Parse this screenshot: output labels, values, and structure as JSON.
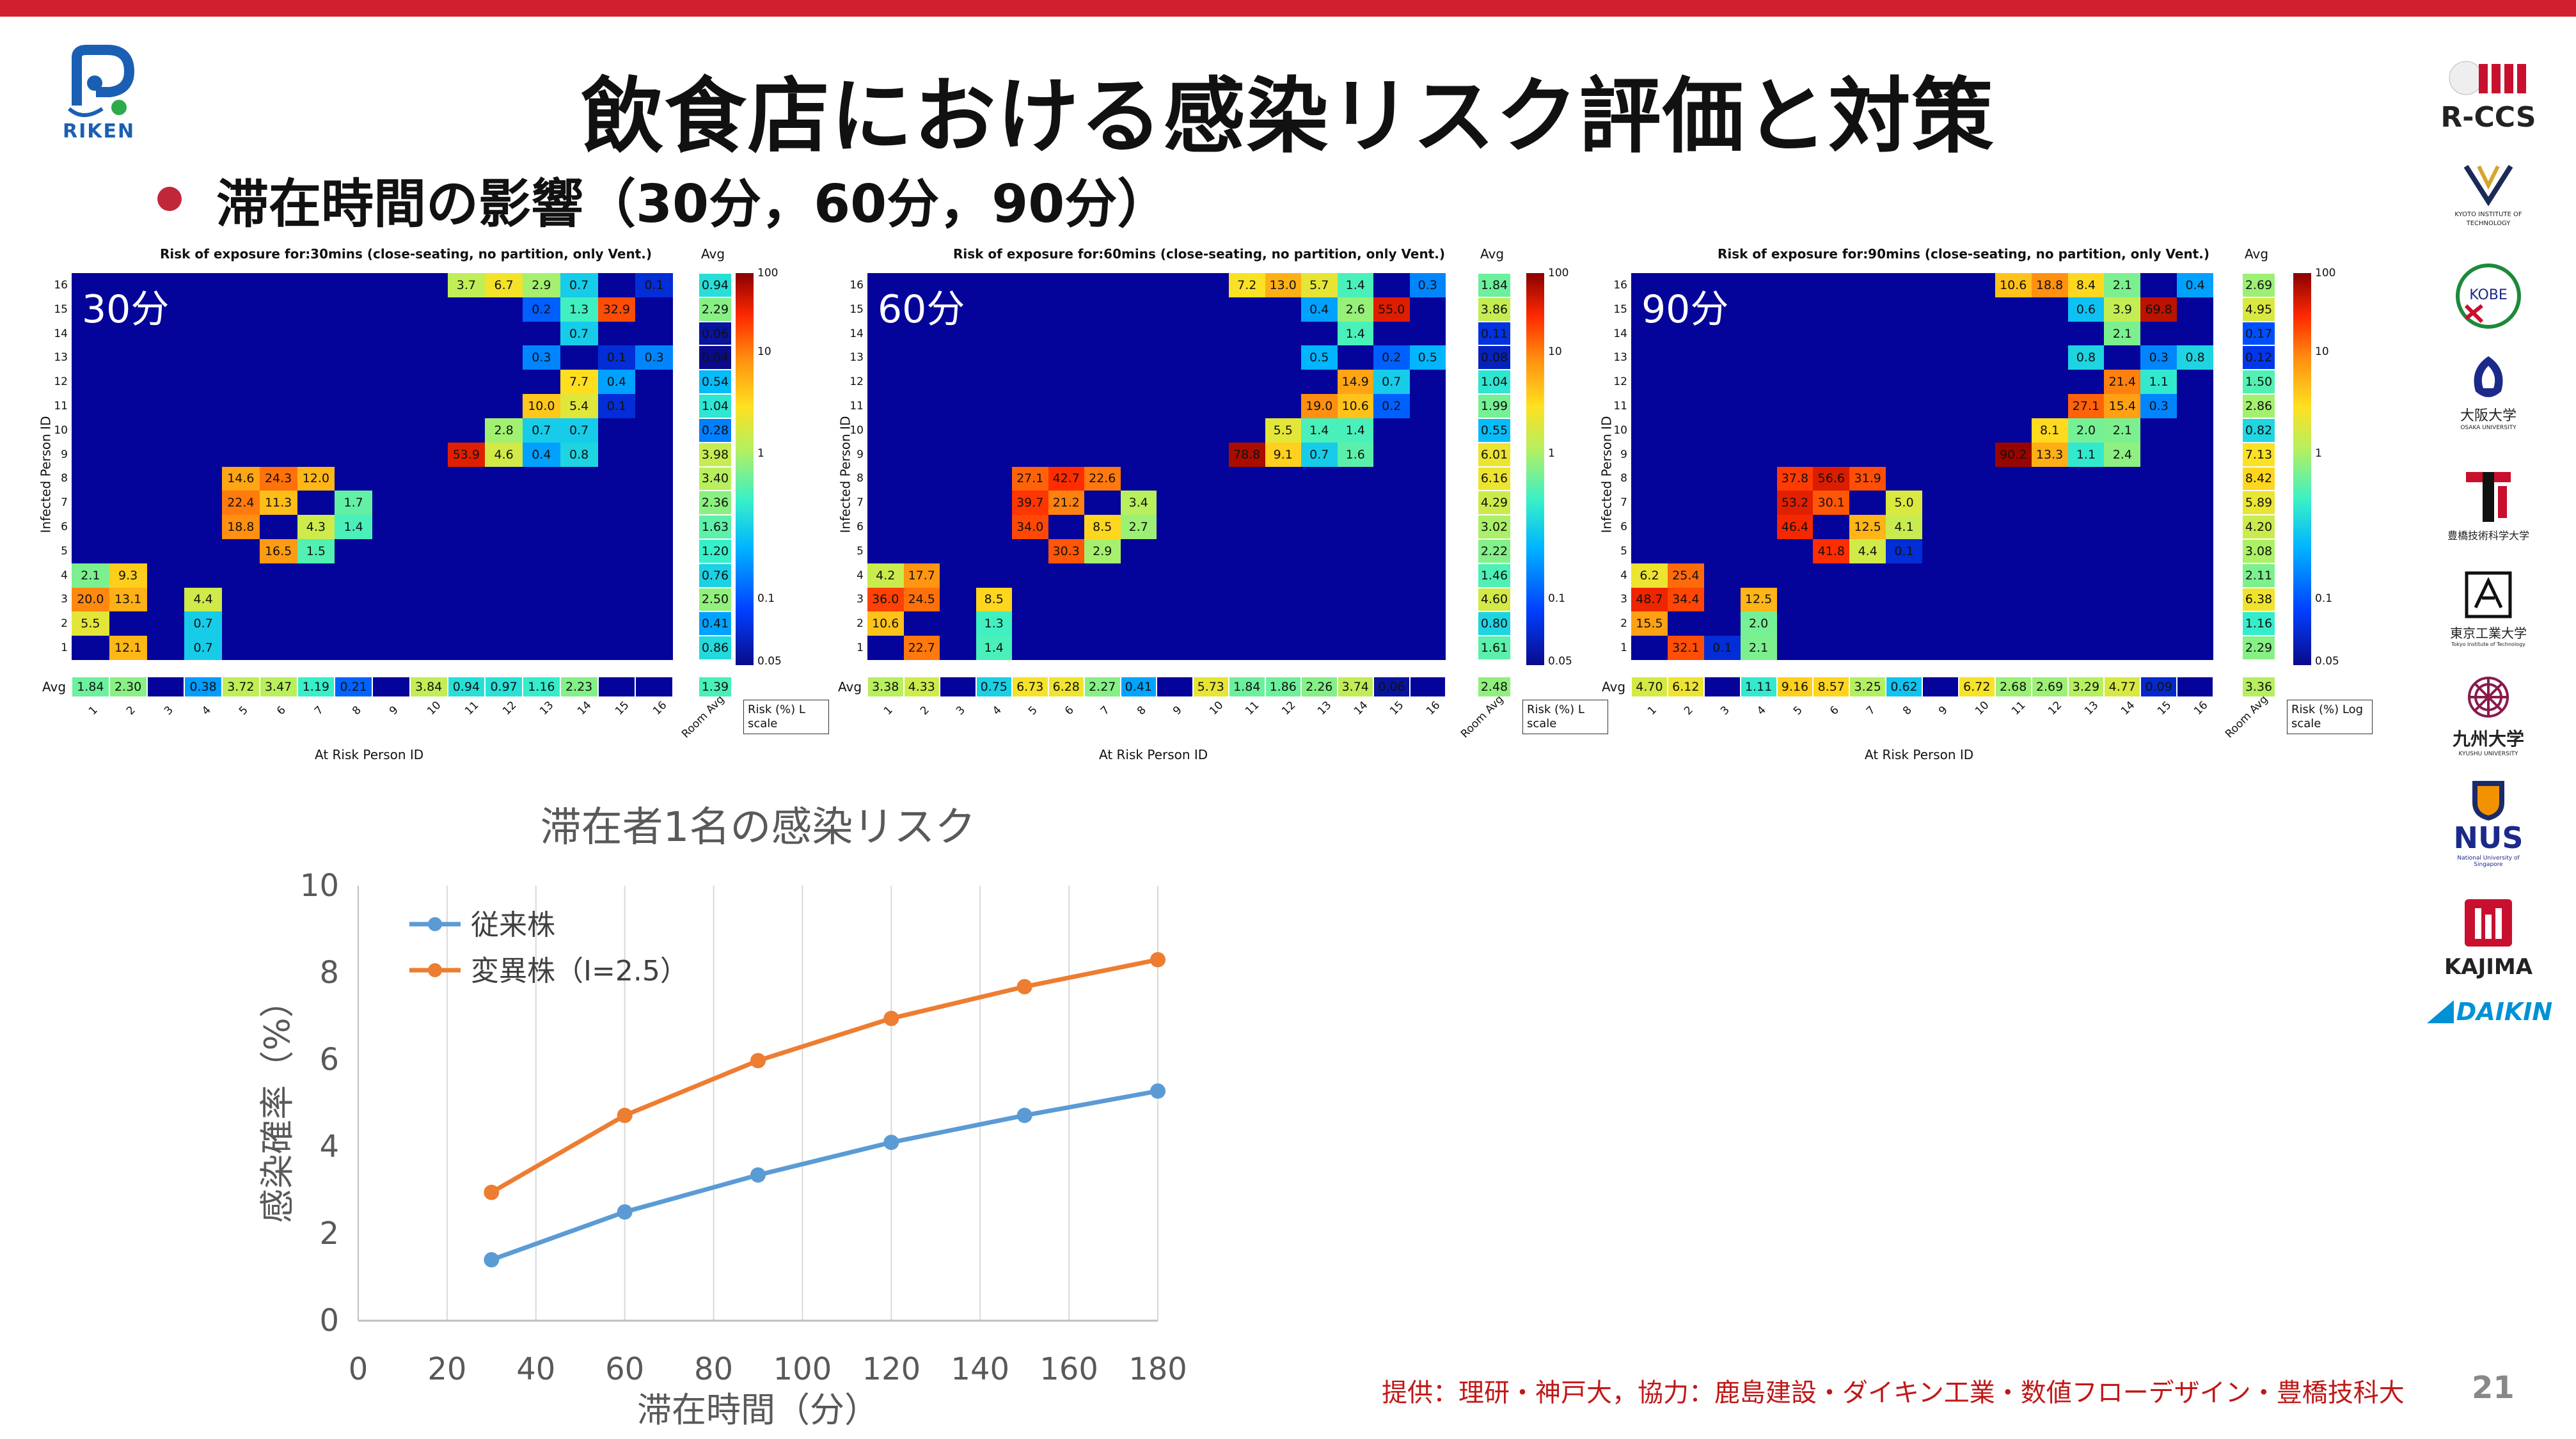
{
  "header": {
    "title": "飲食店における感染リスク評価と対策",
    "subtitle": "滞在時間の影響（30分，60分，90分）"
  },
  "logos": {
    "riken": "RIKEN",
    "rccs": "R-CCS",
    "kyoto": "KYOTO INSTITUTE OF TECHNOLOGY",
    "kobe": "KOBE",
    "osaka": "大阪大学",
    "osaka_sub": "OSAKA UNIVERSITY",
    "toyohashi": "豊橋技術科学大学",
    "tokyotech": "東京工業大学",
    "tokyotech_sub": "Tokyo Institute of Technology",
    "kyushu": "九州大学",
    "kyushu_sub": "KYUSHU UNIVERSITY",
    "nus": "NUS",
    "nus_sub": "National University of Singapore",
    "kajima": "KAJIMA",
    "daikin": "DAIKIN"
  },
  "heatmaps": [
    {
      "label": "30分",
      "title": "Risk of exposure for:30mins (close-seating, no partition, only Vent.)",
      "cells": [
        [
          16,
          11,
          "3.7"
        ],
        [
          16,
          12,
          "6.7"
        ],
        [
          16,
          13,
          "2.9"
        ],
        [
          16,
          14,
          "0.7"
        ],
        [
          16,
          16,
          "0.1"
        ],
        [
          15,
          13,
          "0.2"
        ],
        [
          15,
          14,
          "1.3"
        ],
        [
          15,
          15,
          "32.9"
        ],
        [
          14,
          14,
          "0.7"
        ],
        [
          13,
          13,
          "0.3"
        ],
        [
          13,
          15,
          "0.1"
        ],
        [
          13,
          16,
          "0.3"
        ],
        [
          12,
          14,
          "7.7"
        ],
        [
          12,
          15,
          "0.4"
        ],
        [
          11,
          13,
          "10.0"
        ],
        [
          11,
          14,
          "5.4"
        ],
        [
          11,
          15,
          "0.1"
        ],
        [
          10,
          12,
          "2.8"
        ],
        [
          10,
          13,
          "0.7"
        ],
        [
          10,
          14,
          "0.7"
        ],
        [
          9,
          11,
          "53.9"
        ],
        [
          9,
          12,
          "4.6"
        ],
        [
          9,
          13,
          "0.4"
        ],
        [
          9,
          14,
          "0.8"
        ],
        [
          8,
          5,
          "14.6"
        ],
        [
          8,
          6,
          "24.3"
        ],
        [
          8,
          7,
          "12.0"
        ],
        [
          7,
          5,
          "22.4"
        ],
        [
          7,
          6,
          "11.3"
        ],
        [
          7,
          8,
          "1.7"
        ],
        [
          6,
          5,
          "18.8"
        ],
        [
          6,
          7,
          "4.3"
        ],
        [
          6,
          8,
          "1.4"
        ],
        [
          5,
          6,
          "16.5"
        ],
        [
          5,
          7,
          "1.5"
        ],
        [
          4,
          1,
          "2.1"
        ],
        [
          4,
          2,
          "9.3"
        ],
        [
          3,
          1,
          "20.0"
        ],
        [
          3,
          2,
          "13.1"
        ],
        [
          3,
          4,
          "4.4"
        ],
        [
          2,
          1,
          "5.5"
        ],
        [
          2,
          4,
          "0.7"
        ],
        [
          1,
          2,
          "12.1"
        ],
        [
          1,
          4,
          "0.7"
        ]
      ],
      "rowavg": [
        "0.94",
        "2.29",
        "0.06",
        "0.04",
        "0.54",
        "1.04",
        "0.28",
        "3.98",
        "3.40",
        "2.36",
        "1.63",
        "1.20",
        "0.76",
        "2.50",
        "0.41",
        "0.86"
      ],
      "colavg": [
        "1.84",
        "2.30",
        "",
        "0.38",
        "3.72",
        "3.47",
        "1.19",
        "0.21",
        "",
        "3.84",
        "0.94",
        "0.97",
        "1.16",
        "2.23",
        "",
        ""
      ],
      "room": "1.39"
    },
    {
      "label": "60分",
      "title": "Risk of exposure for:60mins (close-seating, no partition, only Vent.)",
      "cells": [
        [
          16,
          11,
          "7.2"
        ],
        [
          16,
          12,
          "13.0"
        ],
        [
          16,
          13,
          "5.7"
        ],
        [
          16,
          14,
          "1.4"
        ],
        [
          16,
          16,
          "0.3"
        ],
        [
          15,
          13,
          "0.4"
        ],
        [
          15,
          14,
          "2.6"
        ],
        [
          15,
          15,
          "55.0"
        ],
        [
          14,
          14,
          "1.4"
        ],
        [
          13,
          13,
          "0.5"
        ],
        [
          13,
          15,
          "0.2"
        ],
        [
          13,
          16,
          "0.5"
        ],
        [
          12,
          14,
          "14.9"
        ],
        [
          12,
          15,
          "0.7"
        ],
        [
          11,
          13,
          "19.0"
        ],
        [
          11,
          14,
          "10.6"
        ],
        [
          11,
          15,
          "0.2"
        ],
        [
          10,
          12,
          "5.5"
        ],
        [
          10,
          13,
          "1.4"
        ],
        [
          10,
          14,
          "1.4"
        ],
        [
          9,
          11,
          "78.8"
        ],
        [
          9,
          12,
          "9.1"
        ],
        [
          9,
          13,
          "0.7"
        ],
        [
          9,
          14,
          "1.6"
        ],
        [
          8,
          5,
          "27.1"
        ],
        [
          8,
          6,
          "42.7"
        ],
        [
          8,
          7,
          "22.6"
        ],
        [
          7,
          5,
          "39.7"
        ],
        [
          7,
          6,
          "21.2"
        ],
        [
          7,
          8,
          "3.4"
        ],
        [
          6,
          5,
          "34.0"
        ],
        [
          6,
          7,
          "8.5"
        ],
        [
          6,
          8,
          "2.7"
        ],
        [
          5,
          6,
          "30.3"
        ],
        [
          5,
          7,
          "2.9"
        ],
        [
          4,
          1,
          "4.2"
        ],
        [
          4,
          2,
          "17.7"
        ],
        [
          3,
          1,
          "36.0"
        ],
        [
          3,
          2,
          "24.5"
        ],
        [
          3,
          4,
          "8.5"
        ],
        [
          2,
          1,
          "10.6"
        ],
        [
          2,
          4,
          "1.3"
        ],
        [
          1,
          2,
          "22.7"
        ],
        [
          1,
          4,
          "1.4"
        ]
      ],
      "rowavg": [
        "1.84",
        "3.86",
        "0.11",
        "0.08",
        "1.04",
        "1.99",
        "0.55",
        "6.01",
        "6.16",
        "4.29",
        "3.02",
        "2.22",
        "1.46",
        "4.60",
        "0.80",
        "1.61"
      ],
      "colavg": [
        "3.38",
        "4.33",
        "",
        "0.75",
        "6.73",
        "6.28",
        "2.27",
        "0.41",
        "",
        "5.73",
        "1.84",
        "1.86",
        "2.26",
        "3.74",
        "0.06",
        ""
      ],
      "room": "2.48"
    },
    {
      "label": "90分",
      "title": "Risk of exposure for:90mins (close-seating, no partition, only Vent.)",
      "cells": [
        [
          16,
          11,
          "10.6"
        ],
        [
          16,
          12,
          "18.8"
        ],
        [
          16,
          13,
          "8.4"
        ],
        [
          16,
          14,
          "2.1"
        ],
        [
          16,
          16,
          "0.4"
        ],
        [
          15,
          13,
          "0.6"
        ],
        [
          15,
          14,
          "3.9"
        ],
        [
          15,
          15,
          "69.8"
        ],
        [
          14,
          14,
          "2.1"
        ],
        [
          13,
          13,
          "0.8"
        ],
        [
          13,
          15,
          "0.3"
        ],
        [
          13,
          16,
          "0.8"
        ],
        [
          12,
          14,
          "21.4"
        ],
        [
          12,
          15,
          "1.1"
        ],
        [
          11,
          13,
          "27.1"
        ],
        [
          11,
          14,
          "15.4"
        ],
        [
          11,
          15,
          "0.3"
        ],
        [
          10,
          12,
          "8.1"
        ],
        [
          10,
          13,
          "2.0"
        ],
        [
          10,
          14,
          "2.1"
        ],
        [
          9,
          11,
          "90.2"
        ],
        [
          9,
          12,
          "13.3"
        ],
        [
          9,
          13,
          "1.1"
        ],
        [
          9,
          14,
          "2.4"
        ],
        [
          8,
          5,
          "37.8"
        ],
        [
          8,
          6,
          "56.6"
        ],
        [
          8,
          7,
          "31.9"
        ],
        [
          7,
          5,
          "53.2"
        ],
        [
          7,
          6,
          "30.1"
        ],
        [
          7,
          8,
          "5.0"
        ],
        [
          6,
          5,
          "46.4"
        ],
        [
          6,
          7,
          "12.5"
        ],
        [
          6,
          8,
          "4.1"
        ],
        [
          5,
          6,
          "41.8"
        ],
        [
          5,
          7,
          "4.4"
        ],
        [
          5,
          8,
          "0.1"
        ],
        [
          4,
          1,
          "6.2"
        ],
        [
          4,
          2,
          "25.4"
        ],
        [
          3,
          1,
          "48.7"
        ],
        [
          3,
          2,
          "34.4"
        ],
        [
          3,
          4,
          "12.5"
        ],
        [
          2,
          1,
          "15.5"
        ],
        [
          2,
          4,
          "2.0"
        ],
        [
          1,
          2,
          "32.1"
        ],
        [
          1,
          3,
          "0.1"
        ],
        [
          1,
          4,
          "2.1"
        ]
      ],
      "rowavg": [
        "2.69",
        "4.95",
        "0.17",
        "0.12",
        "1.50",
        "2.86",
        "0.82",
        "7.13",
        "8.42",
        "5.89",
        "4.20",
        "3.08",
        "2.11",
        "6.38",
        "1.16",
        "2.29"
      ],
      "colavg": [
        "4.70",
        "6.12",
        "",
        "1.11",
        "9.16",
        "8.57",
        "3.25",
        "0.62",
        "",
        "6.72",
        "2.68",
        "2.69",
        "3.29",
        "4.77",
        "0.09",
        ""
      ],
      "room": "3.36"
    }
  ],
  "heatmap_labels": {
    "ylabel": "Infected Person ID",
    "xlabel": "At Risk Person ID",
    "avg": "Avg",
    "room_avg": "Room Avg",
    "legend": "Risk (%) Log scale",
    "legend_short": "Risk (%) L scale",
    "cb_ticks": [
      "100",
      "10",
      "1",
      "0.1",
      "0.05"
    ]
  },
  "chart_data": {
    "type": "line",
    "title": "滞在者1名の感染リスク",
    "xlabel": "滞在時間（分）",
    "ylabel": "感染確率（%）",
    "xlim": [
      0,
      180
    ],
    "ylim": [
      0,
      10
    ],
    "xticks": [
      0,
      20,
      40,
      60,
      80,
      100,
      120,
      140,
      160,
      180
    ],
    "yticks": [
      0,
      2,
      4,
      6,
      8,
      10
    ],
    "x": [
      30,
      60,
      90,
      120,
      150,
      180
    ],
    "series": [
      {
        "name": "従来株",
        "color": "#5b9bd5",
        "values": [
          1.4,
          2.5,
          3.35,
          4.1,
          4.72,
          5.28
        ]
      },
      {
        "name": "変異株（I=2.5）",
        "color": "#ed7d31",
        "values": [
          2.95,
          4.72,
          5.98,
          6.95,
          7.68,
          8.3
        ]
      }
    ],
    "legend": "top-left",
    "grid": "vertical"
  },
  "footer": {
    "credit": "提供：理研・神戸大，協力：鹿島建設・ダイキン工業・数値フローデザイン・豊橋技科大",
    "page": "21"
  }
}
